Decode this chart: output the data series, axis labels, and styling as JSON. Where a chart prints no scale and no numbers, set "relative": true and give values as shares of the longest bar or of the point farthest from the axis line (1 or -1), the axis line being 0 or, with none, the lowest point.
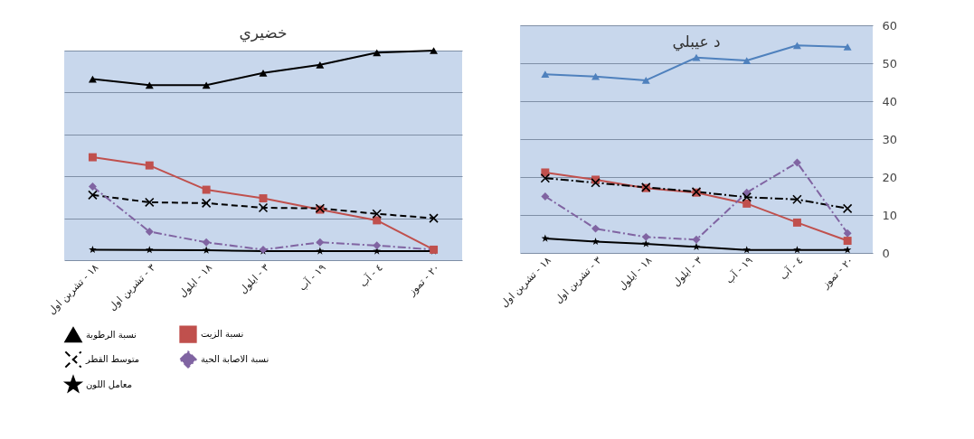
{
  "chart_data": [
    {
      "type": "line",
      "title": "خضيري",
      "categories": [
        "١٨ - تشرين اول",
        "٣ - تشرين اول",
        "١٨ - ايلول",
        "٣ - ايلول",
        "١٩ - آب",
        "٤ - آب",
        "٢٠ - تموز"
      ],
      "series": [
        {
          "name": "نسبة الرطوبة",
          "color": "#000000",
          "marker": "triangle",
          "line_style": "solid",
          "values": [
            0.864,
            0.835,
            0.835,
            0.893,
            0.932,
            0.99,
            1
          ]
        },
        {
          "name": "نسبة الزيت",
          "color": "#c0504d",
          "marker": "square",
          "line_style": "solid",
          "values": [
            0.491,
            0.452,
            0.336,
            0.295,
            0.241,
            0.19,
            0.05
          ]
        },
        {
          "name": "متوسط القطر",
          "color": "#000000",
          "marker": "cross",
          "line_style": "dashed",
          "values": [
            0.311,
            0.276,
            0.272,
            0.25,
            0.247,
            0.221,
            0.2
          ]
        },
        {
          "name": "نسبة الاصابة الحية",
          "color": "#8064a2",
          "marker": "diamond",
          "line_style": "dashdot",
          "values": [
            0.351,
            0.136,
            0.085,
            0.05,
            0.085,
            0.07,
            0.05
          ]
        },
        {
          "name": "معامل اللون",
          "color": "#000000",
          "marker": "star",
          "line_style": "solid",
          "values": [
            0.05,
            0.049,
            0.047,
            0.043,
            0.043,
            0.043,
            0.043
          ]
        }
      ],
      "relative": true,
      "grid": "y",
      "legend": "bottom"
    },
    {
      "type": "line",
      "title": "د عيبلي",
      "categories": [
        "١٨ - تشرين اول",
        "٣ - تشرين اول",
        "١٨ - ايلول",
        "٣ - ايلول",
        "١٩ - آب",
        "٤ - آب",
        "٢٠ - تموز"
      ],
      "series": [
        {
          "color": "#4f81bd",
          "marker": "triangle",
          "line_style": "solid",
          "values": [
            47.1,
            46.5,
            45.5,
            51.5,
            50.7,
            54.7,
            54.3
          ]
        },
        {
          "color": "#c0504d",
          "marker": "square",
          "line_style": "solid",
          "values": [
            21.2,
            19.3,
            17.1,
            15.9,
            13,
            8,
            3.2
          ]
        },
        {
          "color": "#000000",
          "marker": "cross",
          "line_style": "dashdot",
          "values": [
            19.7,
            18.5,
            17.3,
            16.1,
            14.7,
            14.1,
            11.7
          ]
        },
        {
          "color": "#8064a2",
          "marker": "diamond",
          "line_style": "dashdot",
          "values": [
            14.9,
            6.4,
            4.2,
            3.5,
            15.9,
            23.8,
            5.2
          ]
        },
        {
          "color": "#000000",
          "marker": "star",
          "line_style": "solid",
          "values": [
            3.8,
            3,
            2.4,
            1.6,
            0.8,
            0.8,
            0.8
          ]
        }
      ],
      "ylim": [
        0,
        60
      ],
      "yticks": [
        0,
        10,
        20,
        30,
        40,
        50,
        60
      ],
      "grid": "y"
    }
  ]
}
